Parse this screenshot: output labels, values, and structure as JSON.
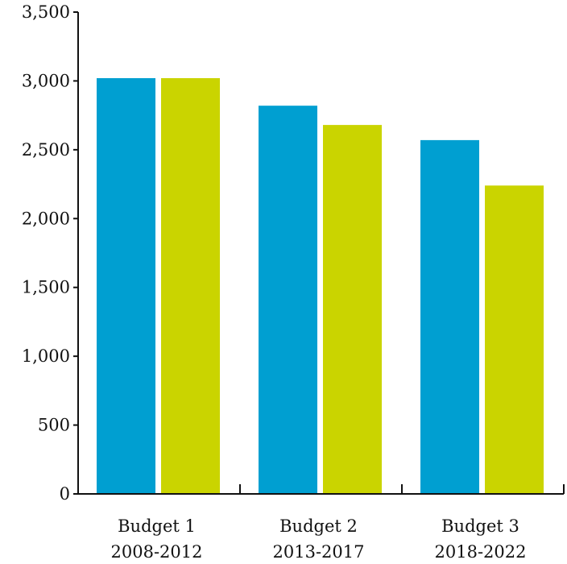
{
  "chart_data": {
    "type": "bar",
    "title": "",
    "xlabel": "",
    "ylabel": "",
    "ylim": [
      0,
      3500
    ],
    "yticks": [
      0,
      500,
      1000,
      1500,
      2000,
      2500,
      3000,
      3500
    ],
    "ytick_labels": [
      "0",
      "500",
      "1,000",
      "1,500",
      "2,000",
      "2,500",
      "3,000",
      "3,500"
    ],
    "grid": false,
    "legend": "none",
    "categories": [
      {
        "line1": "Budget 1",
        "line2": "2008-2012"
      },
      {
        "line1": "Budget 2",
        "line2": "2013-2017"
      },
      {
        "line1": "Budget 3",
        "line2": "2018-2022"
      }
    ],
    "series": [
      {
        "color": "#009fd1",
        "values": [
          3020,
          2820,
          2570
        ]
      },
      {
        "color": "#cad400",
        "values": [
          3020,
          2680,
          2240
        ]
      }
    ]
  }
}
